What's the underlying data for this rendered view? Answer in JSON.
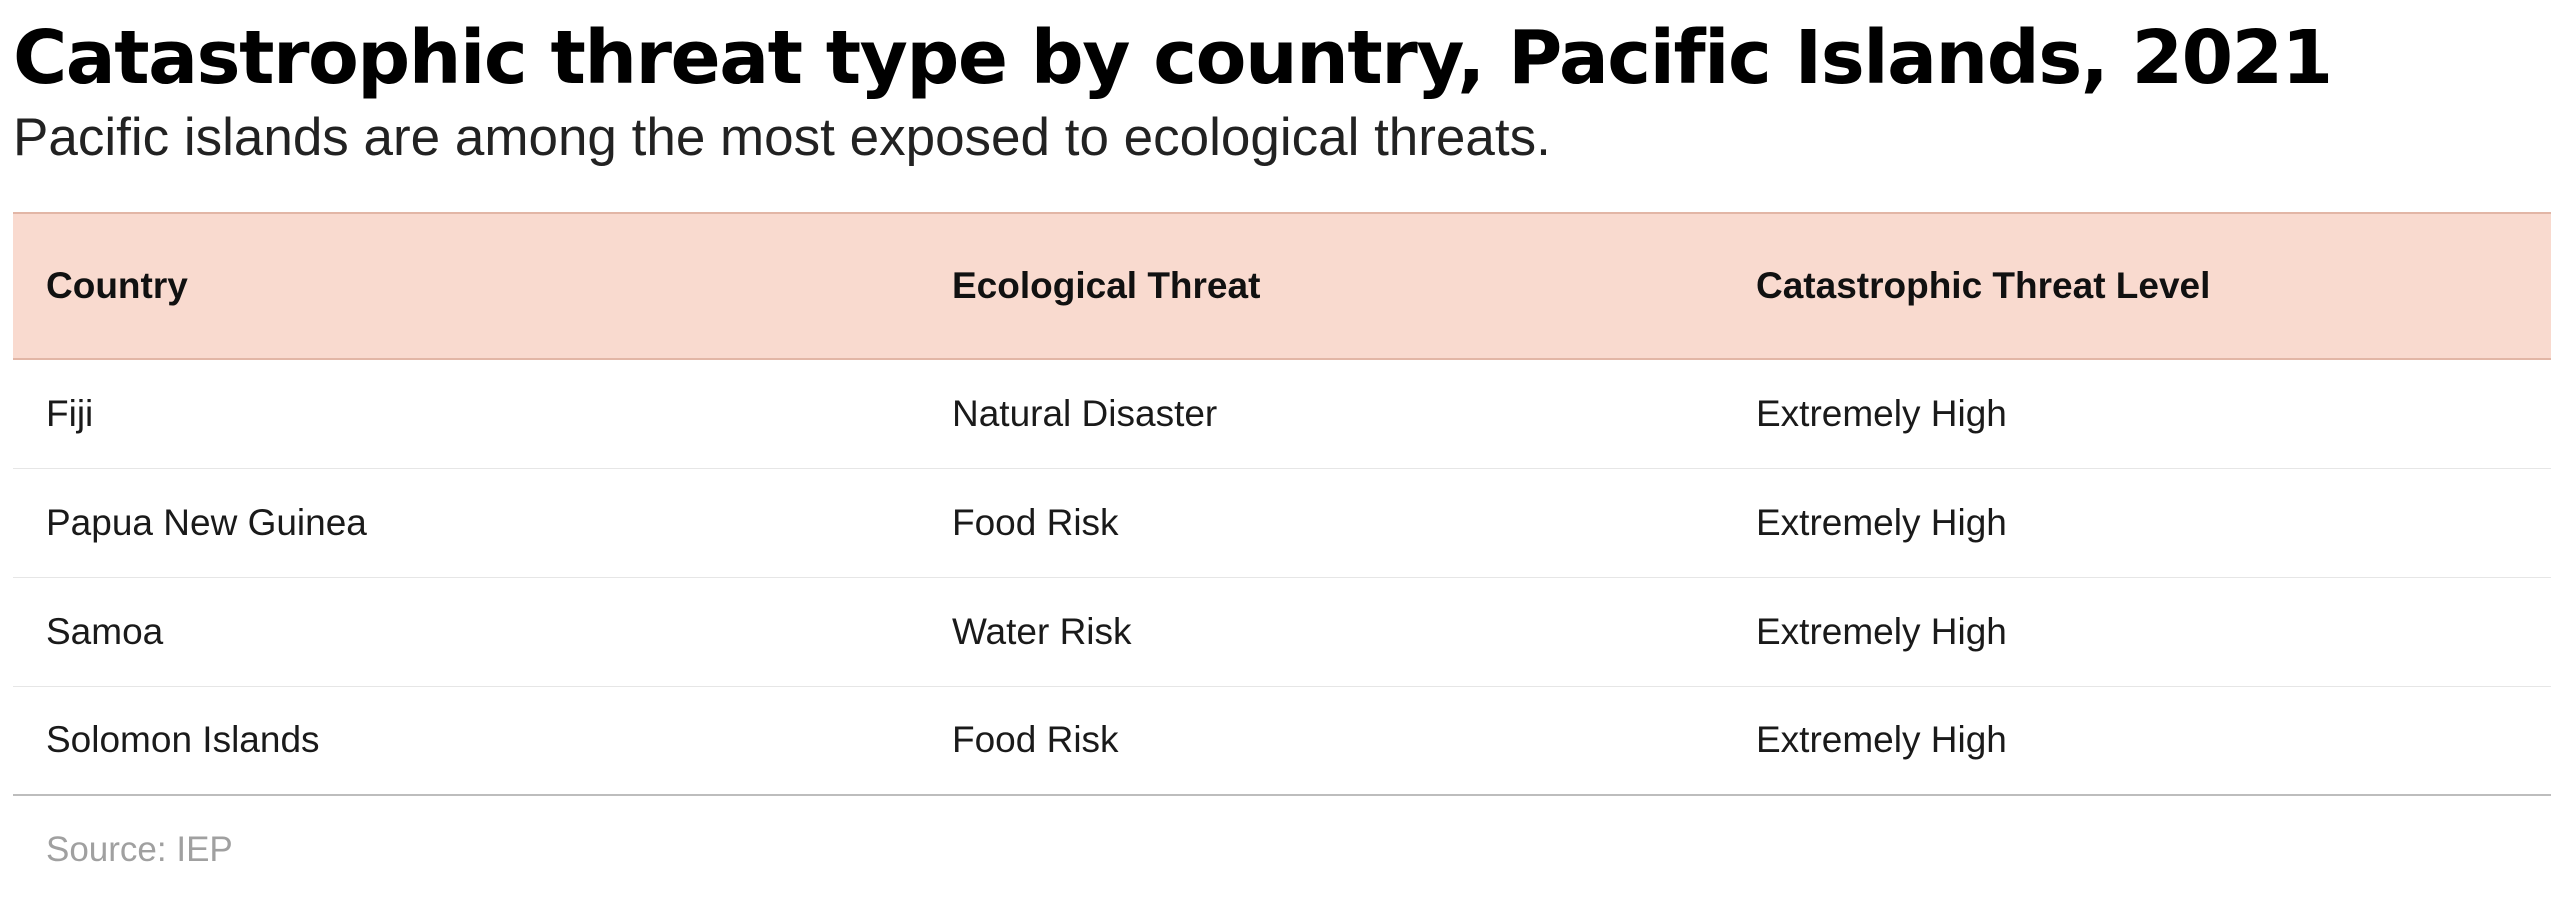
{
  "title": "Catastrophic threat type by country, Pacific Islands, 2021",
  "subtitle": "Pacific islands are among the most exposed to ecological threats.",
  "source": "Source: IEP",
  "colors": {
    "header_background": "#f9dacf",
    "text": "#111111",
    "source_text": "#a0a0a0"
  },
  "chart_data": {
    "type": "table",
    "title": "Catastrophic threat type by country, Pacific Islands, 2021",
    "subtitle": "Pacific islands are among the most exposed to ecological threats.",
    "columns": [
      "Country",
      "Ecological Threat",
      "Catastrophic Threat Level"
    ],
    "rows": [
      [
        "Fiji",
        "Natural Disaster",
        "Extremely High"
      ],
      [
        "Papua New Guinea",
        "Food Risk",
        "Extremely High"
      ],
      [
        "Samoa",
        "Water Risk",
        "Extremely High"
      ],
      [
        "Solomon Islands",
        "Food Risk",
        "Extremely High"
      ]
    ],
    "source": "Source: IEP"
  }
}
